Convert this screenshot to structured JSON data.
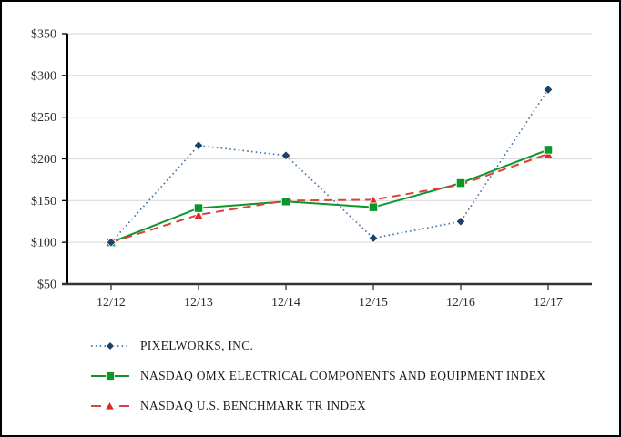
{
  "page": {
    "background": "#ffffff",
    "border_color": "#000000"
  },
  "chart_data": {
    "type": "line",
    "title": "",
    "xlabel": "",
    "ylabel": "",
    "categories": [
      "12/12",
      "12/13",
      "12/14",
      "12/15",
      "12/16",
      "12/17"
    ],
    "series": [
      {
        "name": "PIXELWORKS, INC.",
        "values": [
          100,
          216,
          204,
          105,
          125,
          283
        ],
        "line_color": "#4674a8",
        "marker_color": "#1e4267",
        "line_style": "dotted",
        "marker": "diamond"
      },
      {
        "name": "NASDAQ OMX ELECTRICAL COMPONENTS AND EQUIPMENT INDEX",
        "values": [
          100,
          141,
          149,
          142,
          171,
          211
        ],
        "line_color": "#0b9629",
        "marker_color": "#0b9629",
        "line_style": "solid",
        "marker": "square"
      },
      {
        "name": "NASDAQ U.S. BENCHMARK TR INDEX",
        "values": [
          100,
          133,
          150,
          151,
          169,
          206
        ],
        "line_color": "#dc4238",
        "marker_color": "#dc2c23",
        "line_style": "dashed",
        "marker": "triangle"
      }
    ],
    "ylim": [
      50,
      350
    ],
    "ytick_interval": 50,
    "ytick_labels": [
      "$50",
      "$100",
      "$150",
      "$200",
      "$250",
      "$300",
      "$350"
    ],
    "grid": "horizontal",
    "gridline_color": "#dcdcdc",
    "axis_color": "#333333",
    "tick_label_color": "#2b2b2b",
    "legend_position": "bottom-left"
  }
}
